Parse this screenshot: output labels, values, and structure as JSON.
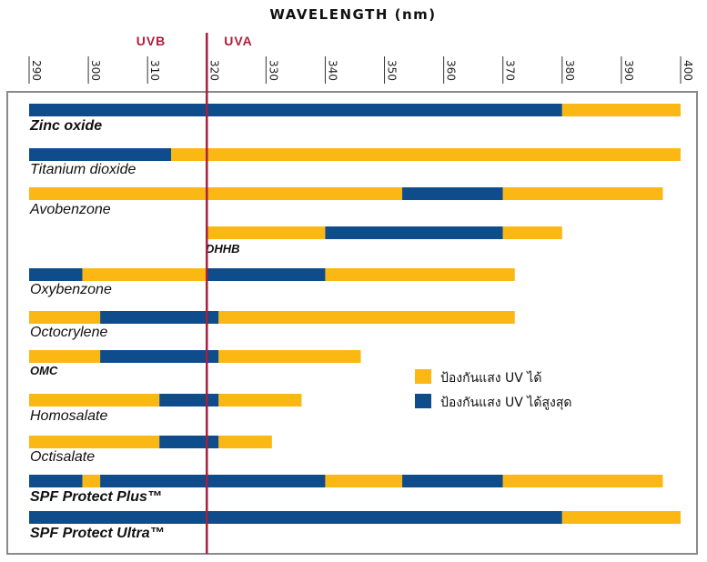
{
  "chart_data": {
    "type": "bar",
    "title": "WAVELENGTH (nm)",
    "bands": [
      {
        "name": "UVB",
        "from": 290,
        "to": 320
      },
      {
        "name": "UVA",
        "from": 320,
        "to": 400
      }
    ],
    "boundary": 320,
    "xlim": [
      290,
      400
    ],
    "ticks": [
      290,
      300,
      310,
      320,
      330,
      340,
      350,
      360,
      370,
      380,
      390,
      400
    ],
    "colors": {
      "protect": "#fbb713",
      "max": "#0e4c8c",
      "boundary": "#a81f3d",
      "band_label": "#b01e3c"
    },
    "legend": [
      {
        "key": "protect",
        "label": "ป้องกันแสง UV ได้"
      },
      {
        "key": "max",
        "label": "ป้องกันแสง UV ได้สูงสุด"
      }
    ],
    "rows": [
      {
        "label": "Zinc oxide",
        "style": "bold",
        "segments": [
          {
            "from": 290,
            "to": 380,
            "type": "max"
          },
          {
            "from": 380,
            "to": 400,
            "type": "protect"
          }
        ]
      },
      {
        "label": "Titanium dioxide",
        "style": "normal",
        "segments": [
          {
            "from": 290,
            "to": 314,
            "type": "max"
          },
          {
            "from": 314,
            "to": 400,
            "type": "protect"
          }
        ]
      },
      {
        "label": "Avobenzone",
        "style": "normal",
        "segments": [
          {
            "from": 290,
            "to": 353,
            "type": "protect"
          },
          {
            "from": 353,
            "to": 370,
            "type": "max"
          },
          {
            "from": 370,
            "to": 397,
            "type": "protect"
          }
        ]
      },
      {
        "label": "DHHB",
        "style": "gray",
        "segments": [
          {
            "from": 320,
            "to": 340,
            "type": "protect"
          },
          {
            "from": 340,
            "to": 370,
            "type": "max"
          },
          {
            "from": 370,
            "to": 380,
            "type": "protect"
          }
        ]
      },
      {
        "label": "Oxybenzone",
        "style": "normal",
        "segments": [
          {
            "from": 290,
            "to": 299,
            "type": "max"
          },
          {
            "from": 299,
            "to": 320,
            "type": "protect"
          },
          {
            "from": 320,
            "to": 340,
            "type": "max"
          },
          {
            "from": 340,
            "to": 372,
            "type": "protect"
          }
        ]
      },
      {
        "label": "Octocrylene",
        "style": "normal",
        "segments": [
          {
            "from": 290,
            "to": 302,
            "type": "protect"
          },
          {
            "from": 302,
            "to": 322,
            "type": "max"
          },
          {
            "from": 322,
            "to": 372,
            "type": "protect"
          }
        ]
      },
      {
        "label": "OMC",
        "style": "boldsmall",
        "segments": [
          {
            "from": 290,
            "to": 302,
            "type": "protect"
          },
          {
            "from": 302,
            "to": 322,
            "type": "max"
          },
          {
            "from": 322,
            "to": 346,
            "type": "protect"
          }
        ]
      },
      {
        "label": "Homosalate",
        "style": "normal",
        "segments": [
          {
            "from": 290,
            "to": 312,
            "type": "protect"
          },
          {
            "from": 312,
            "to": 322,
            "type": "max"
          },
          {
            "from": 322,
            "to": 336,
            "type": "protect"
          }
        ]
      },
      {
        "label": "Octisalate",
        "style": "normal",
        "segments": [
          {
            "from": 290,
            "to": 312,
            "type": "protect"
          },
          {
            "from": 312,
            "to": 322,
            "type": "max"
          },
          {
            "from": 322,
            "to": 331,
            "type": "protect"
          }
        ]
      },
      {
        "label": "SPF Protect Plus™",
        "style": "bold",
        "segments": [
          {
            "from": 290,
            "to": 299,
            "type": "max"
          },
          {
            "from": 299,
            "to": 302,
            "type": "protect"
          },
          {
            "from": 302,
            "to": 340,
            "type": "max"
          },
          {
            "from": 340,
            "to": 353,
            "type": "protect"
          },
          {
            "from": 353,
            "to": 370,
            "type": "max"
          },
          {
            "from": 370,
            "to": 397,
            "type": "protect"
          }
        ]
      },
      {
        "label": "SPF Protect Ultra™",
        "style": "bold",
        "segments": [
          {
            "from": 290,
            "to": 380,
            "type": "max"
          },
          {
            "from": 380,
            "to": 400,
            "type": "protect"
          }
        ]
      }
    ]
  }
}
